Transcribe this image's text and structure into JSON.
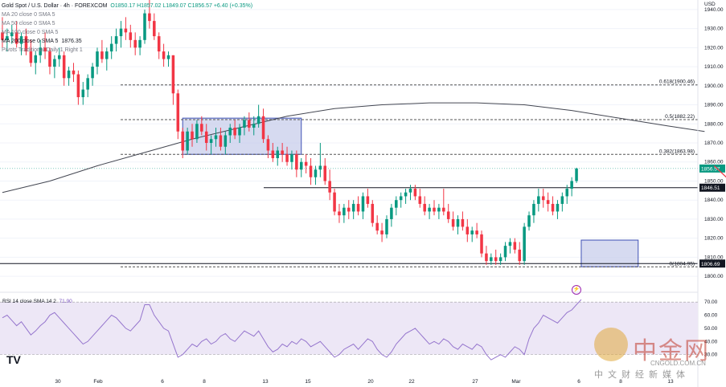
{
  "header": {
    "symbol": "Gold Spot / U.S. Dollar · 4h · FOREXCOM",
    "ohlc": "O1850.17 H1857.02 L1849.07 C1856.57 +6.40 (+0.35%)",
    "ma20": "MA 20 close 0 SMA 5",
    "ma50": "MA 50 close 0 SMA 5",
    "ma100": "MA 100 close 0 SMA 5",
    "ma200": "MA 200 close 0 SMA 5",
    "ma200_value": "1876.35",
    "pivots": "Pivots Traditional Daily 1 Right 1"
  },
  "currency": "USD",
  "rsi_label": "RSI 14 close SMA 14 2",
  "rsi_value": "71.90",
  "watermark": {
    "brand_cn": "中金网",
    "url": "CNGOLD.COM.CN",
    "tagline": "中文财经新媒体"
  },
  "tv_logo": "TV",
  "chart_data": [
    {
      "type": "candlestick",
      "title": "Gold Spot / U.S. Dollar · 4h · FOREXCOM",
      "ylim": [
        1795,
        1945
      ],
      "y_ticks": [
        1800,
        1810,
        1820,
        1830,
        1840,
        1850,
        1860,
        1870,
        1880,
        1890,
        1900,
        1910,
        1920,
        1930,
        1940
      ],
      "x_ticks": [
        "30",
        "Feb",
        "6",
        "8",
        "13",
        "15",
        "20",
        "22",
        "27",
        "Mar",
        "6",
        "8",
        "13"
      ],
      "price_label_last": "1856.57",
      "horizontal_levels": [
        {
          "label": "1846.51",
          "value": 1846.51
        },
        {
          "label": "1806.69",
          "value": 1806.69
        }
      ],
      "fibonacci": [
        {
          "label": "0.618(1900.46)",
          "value": 1900.46
        },
        {
          "label": "0.5(1882.22)",
          "value": 1882.22
        },
        {
          "label": "0.382(1863.98)",
          "value": 1863.98
        },
        {
          "label": "0(1804.95)",
          "value": 1804.95
        }
      ],
      "boxes": [
        {
          "name": "consolidation-feb",
          "x_from": 38,
          "x_to": 63,
          "y_from": 1864,
          "y_to": 1883
        },
        {
          "name": "consolidation-feb-end",
          "x_from": 122,
          "x_to": 134,
          "y_from": 1805,
          "y_to": 1819
        }
      ],
      "ma200_series": [
        [
          0,
          1844
        ],
        [
          10,
          1850
        ],
        [
          20,
          1858
        ],
        [
          30,
          1865
        ],
        [
          40,
          1872
        ],
        [
          50,
          1878
        ],
        [
          60,
          1884
        ],
        [
          70,
          1888
        ],
        [
          80,
          1890
        ],
        [
          90,
          1891
        ],
        [
          100,
          1891
        ],
        [
          110,
          1890
        ],
        [
          120,
          1887
        ],
        [
          130,
          1883
        ],
        [
          140,
          1879
        ],
        [
          148,
          1876
        ]
      ],
      "projection_arrow": [
        [
          150,
          1858
        ],
        [
          153,
          1851
        ],
        [
          160,
          1870
        ]
      ],
      "candles": [
        [
          1928,
          1936,
          1920,
          1924
        ],
        [
          1924,
          1930,
          1918,
          1926
        ],
        [
          1926,
          1932,
          1922,
          1928
        ],
        [
          1928,
          1934,
          1920,
          1922
        ],
        [
          1922,
          1928,
          1916,
          1926
        ],
        [
          1926,
          1930,
          1916,
          1918
        ],
        [
          1918,
          1924,
          1910,
          1912
        ],
        [
          1912,
          1918,
          1906,
          1916
        ],
        [
          1916,
          1924,
          1912,
          1920
        ],
        [
          1920,
          1928,
          1914,
          1918
        ],
        [
          1918,
          1920,
          1906,
          1910
        ],
        [
          1910,
          1916,
          1904,
          1914
        ],
        [
          1914,
          1920,
          1910,
          1916
        ],
        [
          1916,
          1918,
          1900,
          1904
        ],
        [
          1904,
          1910,
          1900,
          1908
        ],
        [
          1908,
          1912,
          1902,
          1906
        ],
        [
          1906,
          1908,
          1890,
          1894
        ],
        [
          1894,
          1902,
          1890,
          1898
        ],
        [
          1898,
          1906,
          1894,
          1904
        ],
        [
          1904,
          1912,
          1900,
          1910
        ],
        [
          1910,
          1920,
          1906,
          1918
        ],
        [
          1918,
          1924,
          1912,
          1914
        ],
        [
          1914,
          1920,
          1908,
          1918
        ],
        [
          1918,
          1926,
          1914,
          1922
        ],
        [
          1922,
          1930,
          1918,
          1926
        ],
        [
          1926,
          1934,
          1920,
          1930
        ],
        [
          1930,
          1936,
          1924,
          1928
        ],
        [
          1928,
          1932,
          1920,
          1924
        ],
        [
          1924,
          1928,
          1916,
          1920
        ],
        [
          1920,
          1926,
          1916,
          1924
        ],
        [
          1924,
          1940,
          1922,
          1938
        ],
        [
          1938,
          1945,
          1930,
          1934
        ],
        [
          1934,
          1938,
          1924,
          1926
        ],
        [
          1926,
          1928,
          1914,
          1918
        ],
        [
          1918,
          1922,
          1910,
          1914
        ],
        [
          1914,
          1918,
          1910,
          1916
        ],
        [
          1916,
          1916,
          1890,
          1896
        ],
        [
          1896,
          1898,
          1872,
          1876
        ],
        [
          1876,
          1878,
          1862,
          1866
        ],
        [
          1866,
          1878,
          1864,
          1876
        ],
        [
          1876,
          1880,
          1868,
          1872
        ],
        [
          1872,
          1882,
          1870,
          1880
        ],
        [
          1880,
          1884,
          1874,
          1876
        ],
        [
          1876,
          1880,
          1866,
          1870
        ],
        [
          1870,
          1874,
          1864,
          1872
        ],
        [
          1872,
          1878,
          1868,
          1874
        ],
        [
          1874,
          1878,
          1866,
          1868
        ],
        [
          1868,
          1876,
          1864,
          1874
        ],
        [
          1874,
          1880,
          1870,
          1878
        ],
        [
          1878,
          1882,
          1872,
          1874
        ],
        [
          1874,
          1880,
          1870,
          1878
        ],
        [
          1878,
          1884,
          1874,
          1882
        ],
        [
          1882,
          1886,
          1876,
          1878
        ],
        [
          1878,
          1884,
          1874,
          1880
        ],
        [
          1880,
          1890,
          1878,
          1884
        ],
        [
          1884,
          1888,
          1870,
          1872
        ],
        [
          1872,
          1874,
          1862,
          1866
        ],
        [
          1866,
          1870,
          1860,
          1862
        ],
        [
          1862,
          1868,
          1858,
          1866
        ],
        [
          1866,
          1870,
          1860,
          1864
        ],
        [
          1864,
          1868,
          1858,
          1860
        ],
        [
          1860,
          1866,
          1856,
          1864
        ],
        [
          1864,
          1866,
          1852,
          1856
        ],
        [
          1856,
          1862,
          1852,
          1860
        ],
        [
          1860,
          1864,
          1854,
          1858
        ],
        [
          1858,
          1862,
          1848,
          1852
        ],
        [
          1852,
          1858,
          1848,
          1856
        ],
        [
          1856,
          1870,
          1852,
          1858
        ],
        [
          1858,
          1862,
          1848,
          1850
        ],
        [
          1850,
          1856,
          1840,
          1844
        ],
        [
          1844,
          1846,
          1832,
          1834
        ],
        [
          1834,
          1838,
          1828,
          1832
        ],
        [
          1832,
          1838,
          1828,
          1836
        ],
        [
          1836,
          1840,
          1830,
          1834
        ],
        [
          1834,
          1840,
          1830,
          1838
        ],
        [
          1838,
          1842,
          1832,
          1834
        ],
        [
          1834,
          1844,
          1830,
          1842
        ],
        [
          1842,
          1846,
          1836,
          1838
        ],
        [
          1838,
          1840,
          1826,
          1828
        ],
        [
          1828,
          1832,
          1822,
          1824
        ],
        [
          1824,
          1828,
          1818,
          1822
        ],
        [
          1822,
          1832,
          1820,
          1830
        ],
        [
          1830,
          1838,
          1826,
          1836
        ],
        [
          1836,
          1842,
          1832,
          1840
        ],
        [
          1840,
          1844,
          1836,
          1842
        ],
        [
          1842,
          1846,
          1838,
          1844
        ],
        [
          1844,
          1848,
          1840,
          1846
        ],
        [
          1846,
          1848,
          1840,
          1842
        ],
        [
          1842,
          1846,
          1836,
          1838
        ],
        [
          1838,
          1842,
          1832,
          1834
        ],
        [
          1834,
          1838,
          1830,
          1836
        ],
        [
          1836,
          1840,
          1832,
          1834
        ],
        [
          1834,
          1838,
          1830,
          1836
        ],
        [
          1836,
          1846,
          1832,
          1834
        ],
        [
          1834,
          1838,
          1828,
          1830
        ],
        [
          1830,
          1834,
          1824,
          1826
        ],
        [
          1826,
          1832,
          1822,
          1830
        ],
        [
          1830,
          1834,
          1824,
          1826
        ],
        [
          1826,
          1830,
          1818,
          1822
        ],
        [
          1822,
          1826,
          1818,
          1824
        ],
        [
          1824,
          1828,
          1820,
          1822
        ],
        [
          1822,
          1824,
          1810,
          1812
        ],
        [
          1812,
          1816,
          1806,
          1808
        ],
        [
          1808,
          1812,
          1806,
          1810
        ],
        [
          1810,
          1814,
          1806,
          1808
        ],
        [
          1808,
          1812,
          1806,
          1810
        ],
        [
          1810,
          1818,
          1808,
          1816
        ],
        [
          1816,
          1820,
          1812,
          1818
        ],
        [
          1818,
          1820,
          1812,
          1814
        ],
        [
          1814,
          1818,
          1806,
          1808
        ],
        [
          1808,
          1828,
          1806,
          1826
        ],
        [
          1826,
          1834,
          1824,
          1832
        ],
        [
          1832,
          1840,
          1828,
          1838
        ],
        [
          1838,
          1846,
          1834,
          1842
        ],
        [
          1842,
          1846,
          1836,
          1840
        ],
        [
          1840,
          1844,
          1834,
          1838
        ],
        [
          1838,
          1842,
          1832,
          1834
        ],
        [
          1834,
          1840,
          1830,
          1838
        ],
        [
          1838,
          1844,
          1834,
          1842
        ],
        [
          1842,
          1848,
          1838,
          1846
        ],
        [
          1846,
          1852,
          1842,
          1850
        ],
        [
          1850,
          1857,
          1849,
          1856.57
        ]
      ]
    },
    {
      "type": "line",
      "title": "RSI 14 close SMA 14 2",
      "ylim": [
        20,
        75
      ],
      "y_ticks": [
        30,
        40,
        50,
        60,
        70
      ],
      "overbought": 70,
      "oversold": 30,
      "values": [
        58,
        60,
        56,
        52,
        55,
        50,
        45,
        48,
        52,
        55,
        60,
        62,
        58,
        54,
        50,
        46,
        42,
        38,
        40,
        44,
        48,
        52,
        56,
        60,
        58,
        54,
        50,
        48,
        52,
        56,
        68,
        68,
        60,
        55,
        50,
        48,
        38,
        28,
        30,
        34,
        38,
        36,
        40,
        42,
        38,
        40,
        44,
        46,
        42,
        40,
        44,
        48,
        46,
        44,
        48,
        42,
        36,
        32,
        34,
        38,
        36,
        40,
        38,
        42,
        40,
        36,
        38,
        40,
        36,
        32,
        28,
        30,
        34,
        36,
        38,
        34,
        38,
        42,
        40,
        34,
        30,
        28,
        32,
        38,
        42,
        46,
        48,
        50,
        46,
        42,
        38,
        40,
        38,
        42,
        40,
        36,
        34,
        38,
        36,
        34,
        38,
        36,
        30,
        26,
        28,
        30,
        28,
        32,
        36,
        34,
        30,
        42,
        50,
        54,
        60,
        58,
        56,
        54,
        58,
        62,
        64,
        68,
        71.9
      ],
      "sma_values": [
        50,
        50,
        50,
        50,
        50,
        50,
        50,
        50,
        50,
        50,
        50,
        50,
        50,
        50,
        50,
        50,
        50,
        50,
        50,
        50,
        50,
        50,
        50,
        50,
        50,
        50,
        50,
        50,
        50,
        50,
        50,
        50,
        50,
        50,
        50,
        50,
        50,
        50,
        50,
        50,
        50,
        50,
        50,
        50,
        50,
        50,
        50,
        50,
        50,
        50,
        50,
        50,
        50,
        50,
        50,
        50,
        50,
        50,
        50,
        50,
        50,
        50,
        50,
        50,
        50,
        50,
        50,
        50,
        50,
        50,
        50,
        50,
        50,
        50,
        50,
        50,
        50,
        50,
        50,
        50,
        50,
        50,
        50,
        50,
        50,
        50,
        50,
        50,
        50,
        50,
        50,
        50,
        50,
        50,
        50,
        50,
        50,
        50,
        50,
        50,
        50,
        50,
        50,
        50,
        50,
        50,
        50,
        50,
        50,
        50,
        50,
        50,
        50,
        50,
        50,
        50,
        50,
        50,
        50,
        50,
        50,
        50,
        50
      ]
    }
  ],
  "colors": {
    "bull": "#089981",
    "bear": "#f23645",
    "box_fill": "#c5cae9",
    "box_stroke": "#3f51b5",
    "rsi_line": "#9575cd",
    "rsi_band": "#ede7f6",
    "ma200": "#434651",
    "arrow": "#f23645",
    "price_tag": "#089981",
    "level_tag": "#131722"
  }
}
